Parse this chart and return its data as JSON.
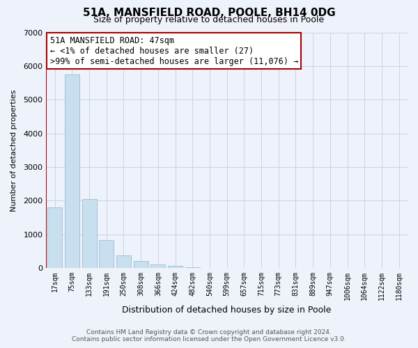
{
  "title": "51A, MANSFIELD ROAD, POOLE, BH14 0DG",
  "subtitle": "Size of property relative to detached houses in Poole",
  "xlabel": "Distribution of detached houses by size in Poole",
  "ylabel": "Number of detached properties",
  "bar_labels": [
    "17sqm",
    "75sqm",
    "133sqm",
    "191sqm",
    "250sqm",
    "308sqm",
    "366sqm",
    "424sqm",
    "482sqm",
    "540sqm",
    "599sqm",
    "657sqm",
    "715sqm",
    "773sqm",
    "831sqm",
    "889sqm",
    "947sqm",
    "1006sqm",
    "1064sqm",
    "1122sqm",
    "1180sqm"
  ],
  "bar_values": [
    1800,
    5750,
    2050,
    830,
    370,
    220,
    100,
    60,
    30,
    10,
    5,
    0,
    0,
    0,
    0,
    0,
    0,
    0,
    0,
    0,
    0
  ],
  "bar_color": "#c8dff0",
  "bar_edge_color": "#9abcd4",
  "marker_color": "#aa0000",
  "ylim": [
    0,
    7000
  ],
  "yticks": [
    0,
    1000,
    2000,
    3000,
    4000,
    5000,
    6000,
    7000
  ],
  "annotation_title": "51A MANSFIELD ROAD: 47sqm",
  "annotation_line1": "← <1% of detached houses are smaller (27)",
  "annotation_line2": ">99% of semi-detached houses are larger (11,076) →",
  "footer_line1": "Contains HM Land Registry data © Crown copyright and database right 2024.",
  "footer_line2": "Contains public sector information licensed under the Open Government Licence v3.0.",
  "background_color": "#eef2fa",
  "grid_color": "#c8d4e8"
}
